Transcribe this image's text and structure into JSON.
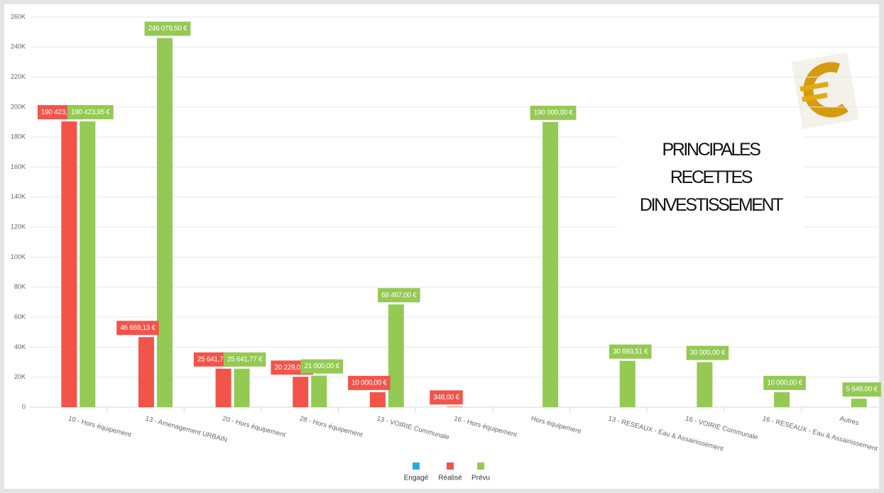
{
  "chart_data": {
    "type": "bar",
    "title": "PRINCIPALES\nRECETTES\nDINVESTISSEMENT",
    "categories": [
      "10 - Hors équipement",
      "13 - Amenagement URBAIN",
      "20 - Hors équipement",
      "28 - Hors équipement",
      "13 - VOIRIE Communale",
      "16 - Hors équipement",
      "Hors équipement",
      "13 - RESEAUX - Eau & Assainissement",
      "16 - VOIRIE Communale",
      "16 - RESEAUX - Eau & Assainissement",
      "Autres"
    ],
    "series": [
      {
        "name": "Engagé",
        "color": "#2aa9e0",
        "values": [
          null,
          null,
          null,
          null,
          null,
          null,
          null,
          null,
          null,
          null,
          null
        ]
      },
      {
        "name": "Réalisé",
        "color": "#f2544a",
        "values": [
          190423.95,
          46669.13,
          25641.77,
          20229.01,
          10000,
          348,
          null,
          null,
          null,
          null,
          null
        ],
        "value_labels": [
          "190 423,95 €",
          "46 669,13 €",
          "25 641,77 €",
          "20 229,01 €",
          "10 000,00 €",
          "348,00 €",
          null,
          null,
          null,
          null,
          null
        ]
      },
      {
        "name": "Prévu",
        "color": "#94c953",
        "values": [
          190423.95,
          246079.5,
          25641.77,
          21000,
          68467,
          null,
          190000,
          30893.51,
          30000,
          10000,
          5649
        ],
        "value_labels": [
          "190 423,95 €",
          "246 079,50 €",
          "25 641,77 €",
          "21 000,00 €",
          "68 467,00 €",
          null,
          "190 000,00 €",
          "30 893,51 €",
          "30 000,00 €",
          "10 000,00 €",
          "5 649,00 €"
        ]
      }
    ],
    "ylim": [
      0,
      260000
    ],
    "yticks": [
      0,
      {
        "value": 20000,
        "label": "20K"
      },
      {
        "value": 40000,
        "label": "40K"
      },
      {
        "value": 60000,
        "label": "60K"
      },
      {
        "value": 80000,
        "label": "80K"
      },
      {
        "value": 100000,
        "label": "100K"
      },
      {
        "value": 120000,
        "label": "120K"
      },
      {
        "value": 140000,
        "label": "140K"
      },
      {
        "value": 160000,
        "label": "160K"
      },
      {
        "value": 180000,
        "label": "180K"
      },
      {
        "value": 200000,
        "label": "200K"
      },
      {
        "value": 220000,
        "label": "220K"
      },
      {
        "value": 240000,
        "label": "240K"
      },
      {
        "value": 260000,
        "label": "260K"
      }
    ],
    "grid": true
  }
}
